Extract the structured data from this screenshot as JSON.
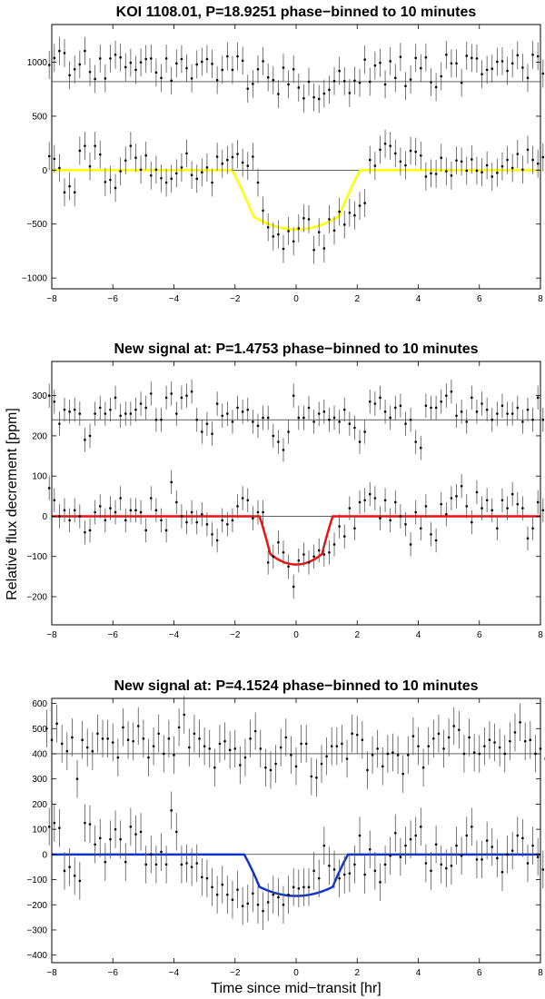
{
  "figure": {
    "ylabel": "Relative flux decrement [ppm]",
    "xlabel": "Time since mid−transit [hr]"
  },
  "chart_data": [
    {
      "type": "scatter",
      "title": "KOI 1108.01, P=18.9251 phase−binned to 10 minutes",
      "xlim": [
        -8,
        8
      ],
      "ylim": [
        -1100,
        1350
      ],
      "xticks": [
        -8,
        -6,
        -4,
        -2,
        0,
        2,
        4,
        6,
        8
      ],
      "yticks": [
        -1000,
        -500,
        0,
        500,
        1000
      ],
      "offset": 820,
      "model": {
        "depth": 550,
        "t1": 2.1,
        "t2": 1.4,
        "color": "#ffff00"
      },
      "upper_series": [
        975,
        1040,
        1105,
        1085,
        880,
        935,
        980,
        1105,
        910,
        845,
        1035,
        850,
        1035,
        1070,
        1045,
        955,
        995,
        930,
        1000,
        1030,
        1035,
        905,
        855,
        1035,
        830,
        990,
        1030,
        945,
        850,
        980,
        1005,
        1030,
        985,
        835,
        930,
        1055,
        930,
        1055,
        1015,
        755,
        800,
        935,
        1010,
        860,
        835,
        705,
        950,
        795,
        935,
        765,
        665,
        820,
        675,
        660,
        710,
        745,
        825,
        920,
        825,
        715,
        830,
        810,
        1025,
        820,
        970,
        995,
        795,
        1010,
        855,
        1050,
        780,
        840,
        1040,
        945,
        1045,
        815,
        770,
        870,
        1070,
        990,
        990,
        810,
        1060,
        1040,
        1035,
        890,
        930,
        940,
        1005,
        1010,
        920,
        990,
        1065,
        950,
        855,
        1070,
        1055,
        895
      ],
      "lower_series": [
        130,
        105,
        20,
        -205,
        -150,
        -205,
        180,
        225,
        35,
        225,
        145,
        -110,
        -90,
        -165,
        -10,
        90,
        225,
        115,
        5,
        135,
        -50,
        5,
        -75,
        -115,
        -80,
        -30,
        25,
        155,
        -45,
        -80,
        -20,
        25,
        -115,
        125,
        60,
        95,
        120,
        150,
        70,
        40,
        125,
        -115,
        -375,
        -530,
        -615,
        -595,
        -730,
        -565,
        -660,
        -540,
        -445,
        -455,
        -740,
        -575,
        -725,
        -455,
        -560,
        -385,
        -505,
        -395,
        -420,
        -330,
        -305,
        95,
        40,
        190,
        245,
        225,
        155,
        80,
        45,
        180,
        170,
        135,
        -60,
        -30,
        -35,
        115,
        -10,
        -50,
        90,
        80,
        -5,
        100,
        -5,
        -20,
        45,
        -60,
        -25,
        35,
        95,
        20,
        150,
        5,
        190,
        95,
        60,
        120
      ],
      "errorbar": 130
    },
    {
      "type": "scatter",
      "title": "New signal at: P=1.4753 phase−binned to 10 minutes",
      "xlim": [
        -8,
        8
      ],
      "ylim": [
        -270,
        385
      ],
      "xticks": [
        -8,
        -6,
        -4,
        -2,
        0,
        2,
        4,
        6,
        8
      ],
      "yticks": [
        -200,
        -100,
        0,
        100,
        200,
        300
      ],
      "offset": 240,
      "model": {
        "depth": 120,
        "t1": 1.2,
        "t2": 0.85,
        "color": "#ee1111"
      },
      "upper_series": [
        300,
        285,
        230,
        265,
        260,
        265,
        255,
        190,
        200,
        255,
        270,
        255,
        265,
        295,
        250,
        255,
        255,
        265,
        280,
        270,
        305,
        240,
        240,
        295,
        305,
        255,
        295,
        300,
        310,
        240,
        210,
        230,
        205,
        280,
        250,
        255,
        235,
        270,
        260,
        265,
        235,
        225,
        245,
        245,
        200,
        185,
        165,
        210,
        300,
        245,
        245,
        270,
        235,
        255,
        260,
        240,
        245,
        235,
        265,
        230,
        220,
        185,
        210,
        285,
        280,
        295,
        260,
        245,
        270,
        275,
        230,
        240,
        185,
        170,
        275,
        270,
        270,
        285,
        300,
        310,
        250,
        260,
        235,
        295,
        260,
        280,
        265,
        240,
        255,
        275,
        255,
        255,
        270,
        235,
        265,
        240,
        295,
        240
      ],
      "lower_series": [
        70,
        40,
        0,
        15,
        -10,
        15,
        0,
        -40,
        -35,
        10,
        25,
        -10,
        20,
        10,
        45,
        -10,
        15,
        15,
        10,
        -35,
        45,
        15,
        -10,
        -35,
        85,
        35,
        0,
        -15,
        10,
        -15,
        5,
        -20,
        -45,
        -60,
        -10,
        -20,
        -10,
        25,
        45,
        40,
        -5,
        10,
        10,
        -115,
        -100,
        -65,
        -90,
        -125,
        -175,
        -110,
        -95,
        -115,
        -100,
        -85,
        -95,
        -90,
        -70,
        -25,
        -50,
        20,
        -30,
        35,
        40,
        55,
        45,
        -5,
        40,
        -10,
        35,
        0,
        -20,
        -70,
        10,
        -30,
        25,
        -45,
        -60,
        30,
        5,
        45,
        50,
        75,
        25,
        -15,
        60,
        20,
        40,
        15,
        -30,
        40,
        20,
        55,
        30,
        20,
        -55,
        -30,
        35,
        15
      ],
      "errorbar": 30
    },
    {
      "type": "scatter",
      "title": "New signal at: P=4.1524 phase−binned to 10 minutes",
      "xlim": [
        -8,
        8
      ],
      "ylim": [
        -430,
        620
      ],
      "xticks": [
        -8,
        -6,
        -4,
        -2,
        0,
        2,
        4,
        6,
        8
      ],
      "yticks": [
        -400,
        -300,
        -200,
        -100,
        0,
        100,
        200,
        300,
        400,
        500,
        600
      ],
      "offset": 400,
      "model": {
        "depth": 165,
        "t1": 1.7,
        "t2": 1.2,
        "color": "#1133cc"
      },
      "upper_series": [
        500,
        455,
        520,
        440,
        410,
        465,
        300,
        455,
        425,
        410,
        480,
        460,
        460,
        445,
        385,
        505,
        455,
        450,
        510,
        460,
        385,
        430,
        480,
        400,
        460,
        395,
        505,
        555,
        425,
        480,
        460,
        430,
        420,
        345,
        440,
        450,
        415,
        420,
        355,
        385,
        460,
        490,
        420,
        345,
        335,
        360,
        425,
        465,
        395,
        350,
        440,
        440,
        310,
        305,
        360,
        390,
        430,
        430,
        440,
        380,
        480,
        475,
        455,
        335,
        395,
        420,
        350,
        400,
        405,
        395,
        320,
        395,
        470,
        430,
        345,
        430,
        460,
        480,
        420,
        465,
        510,
        495,
        400,
        465,
        405,
        400,
        430,
        455,
        445,
        425,
        400,
        450,
        485,
        525,
        450,
        455,
        400,
        420,
        380
      ],
      "lower_series": [
        110,
        125,
        105,
        -65,
        -50,
        -85,
        -105,
        125,
        120,
        40,
        65,
        -30,
        60,
        100,
        60,
        -30,
        110,
        80,
        90,
        -40,
        0,
        -40,
        10,
        -40,
        175,
        90,
        -40,
        -35,
        -50,
        -35,
        -90,
        -95,
        -130,
        -160,
        -120,
        -160,
        -180,
        -140,
        -205,
        -195,
        -155,
        -200,
        -225,
        -190,
        -160,
        -170,
        -200,
        -160,
        -130,
        -135,
        -130,
        -130,
        -65,
        -95,
        35,
        -45,
        -60,
        -95,
        -80,
        -75,
        -40,
        75,
        -80,
        20,
        -65,
        -110,
        -40,
        -5,
        85,
        -10,
        35,
        60,
        75,
        110,
        -35,
        -65,
        40,
        -40,
        -55,
        -45,
        35,
        -5,
        75,
        110,
        -20,
        -20,
        55,
        30,
        -15,
        -70,
        0,
        15,
        75,
        65,
        -35,
        35,
        -10,
        -60
      ],
      "errorbar": 75
    }
  ]
}
